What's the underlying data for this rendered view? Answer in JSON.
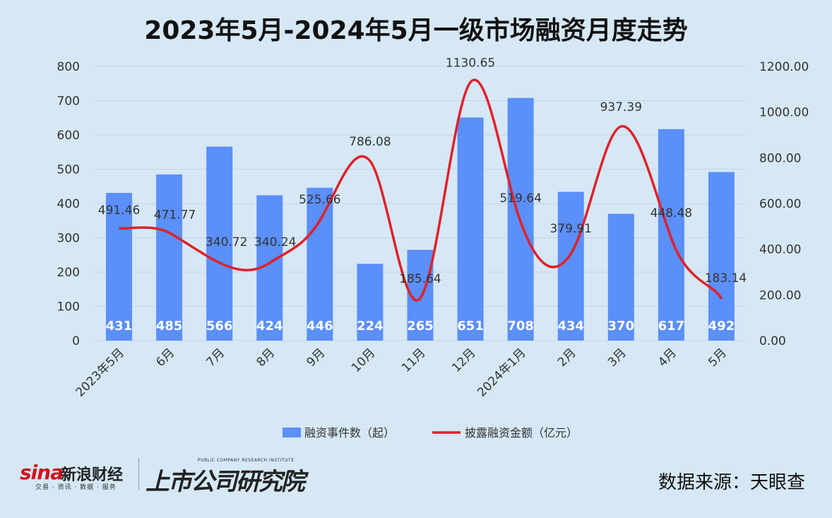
{
  "title": "2023年5月-2024年5月一级市场融资月度走势",
  "source": "数据来源：天眼查",
  "brands": {
    "sina_mark": "sina",
    "sina_name": "新浪财经",
    "sina_sub": "交易 · 资讯 · 数据 · 服务",
    "research_name": "上市公司研究院",
    "research_en": "PUBLIC COMPANY RESEARCH INSTITUTE"
  },
  "colors": {
    "bar": "#5b8ff9",
    "line": "#e0202a",
    "grid": "#c3d6e6",
    "background": "#d6e8f5"
  },
  "chart_data": {
    "type": "bar",
    "categories": [
      "2023年5月",
      "6月",
      "7月",
      "8月",
      "9月",
      "10月",
      "11月",
      "12月",
      "2024年1月",
      "2月",
      "3月",
      "4月",
      "5月"
    ],
    "series": [
      {
        "name": "融资事件数（起）",
        "type": "bar",
        "axis": "left",
        "values": [
          431,
          485,
          566,
          424,
          446,
          224,
          265,
          651,
          708,
          434,
          370,
          617,
          492
        ]
      },
      {
        "name": "披露融资金额（亿元）",
        "type": "line",
        "smooth": true,
        "axis": "right",
        "values": [
          491.46,
          471.77,
          340.72,
          340.24,
          525.66,
          786.08,
          185.64,
          1130.65,
          519.64,
          379.91,
          937.39,
          448.48,
          183.14
        ],
        "labels": [
          "491.46",
          "471.77",
          "340.72",
          "340.24",
          "525.66",
          "786.08",
          "185.64",
          "1130.65",
          "519.64",
          "379.91",
          "937.39",
          "448.48",
          "183.14"
        ]
      }
    ],
    "y_left": {
      "range": [
        0,
        800
      ],
      "ticks": [
        "0",
        "100",
        "200",
        "300",
        "400",
        "500",
        "600",
        "700",
        "800"
      ]
    },
    "y_right": {
      "range": [
        0,
        1200
      ],
      "ticks": [
        "0.00",
        "200.00",
        "400.00",
        "600.00",
        "800.00",
        "1000.00",
        "1200.00"
      ]
    },
    "grid": true,
    "legend_position": "bottom"
  }
}
